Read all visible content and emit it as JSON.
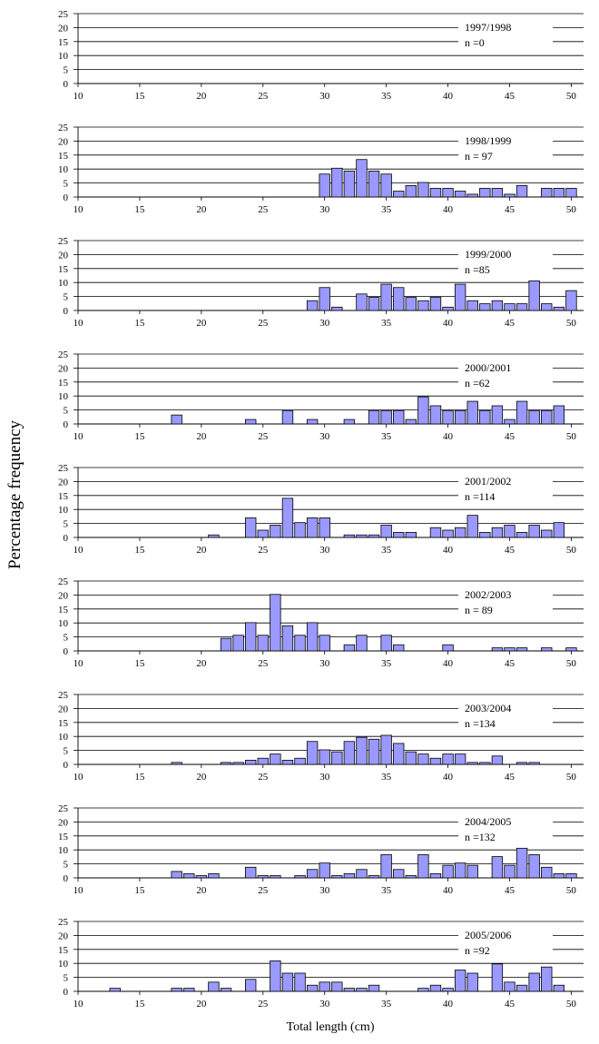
{
  "figure": {
    "ylabel": "Percentage frequency",
    "xlabel": "Total length (cm)"
  },
  "colors": {
    "bar_fill": "#9999ff",
    "bar_stroke": "#000000",
    "grid": "#000000"
  },
  "chart_data": [
    {
      "type": "bar",
      "title": "1997/1998",
      "n_label": "n =0",
      "xlim": [
        10,
        51
      ],
      "ylim": [
        0,
        25
      ],
      "xticks": [
        10,
        15,
        20,
        25,
        30,
        35,
        40,
        45,
        50
      ],
      "yticks": [
        0,
        5,
        10,
        15,
        20,
        25
      ],
      "x": [],
      "values": []
    },
    {
      "type": "bar",
      "title": "1998/1999",
      "n_label": "n = 97",
      "xlim": [
        10,
        51
      ],
      "ylim": [
        0,
        25
      ],
      "xticks": [
        10,
        15,
        20,
        25,
        30,
        35,
        40,
        45,
        50
      ],
      "yticks": [
        0,
        5,
        10,
        15,
        20,
        25
      ],
      "x": [
        30,
        31,
        32,
        33,
        34,
        35,
        36,
        37,
        38,
        39,
        40,
        41,
        42,
        43,
        44,
        45,
        46,
        48,
        49,
        50
      ],
      "values": [
        8.2,
        10.3,
        9.3,
        13.4,
        9.3,
        8.2,
        2.1,
        4.1,
        5.2,
        3.1,
        3.1,
        2.1,
        1.0,
        3.1,
        3.1,
        1.0,
        4.1,
        3.1,
        3.1,
        3.1
      ]
    },
    {
      "type": "bar",
      "title": "1999/2000",
      "n_label": "n =85",
      "xlim": [
        10,
        51
      ],
      "ylim": [
        0,
        25
      ],
      "xticks": [
        10,
        15,
        20,
        25,
        30,
        35,
        40,
        45,
        50
      ],
      "yticks": [
        0,
        5,
        10,
        15,
        20,
        25
      ],
      "x": [
        29,
        30,
        31,
        33,
        34,
        35,
        36,
        37,
        38,
        39,
        40,
        41,
        42,
        43,
        44,
        45,
        46,
        47,
        48,
        49,
        50
      ],
      "values": [
        3.5,
        8.2,
        1.2,
        5.9,
        4.7,
        9.4,
        8.2,
        4.7,
        3.5,
        4.7,
        1.2,
        9.4,
        3.5,
        2.4,
        3.5,
        2.4,
        2.4,
        10.6,
        2.4,
        1.2,
        7.1
      ]
    },
    {
      "type": "bar",
      "title": "2000/2001",
      "n_label": "n =62",
      "xlim": [
        10,
        51
      ],
      "ylim": [
        0,
        25
      ],
      "xticks": [
        10,
        15,
        20,
        25,
        30,
        35,
        40,
        45,
        50
      ],
      "yticks": [
        0,
        5,
        10,
        15,
        20,
        25
      ],
      "x": [
        18,
        24,
        27,
        29,
        32,
        34,
        35,
        36,
        37,
        38,
        39,
        40,
        41,
        42,
        43,
        44,
        45,
        46,
        47,
        48,
        49
      ],
      "values": [
        3.2,
        1.6,
        4.8,
        1.6,
        1.6,
        4.8,
        4.8,
        4.8,
        1.6,
        9.7,
        6.5,
        4.8,
        4.8,
        8.1,
        4.8,
        6.5,
        1.6,
        8.1,
        4.8,
        4.8,
        6.5
      ]
    },
    {
      "type": "bar",
      "title": "2001/2002",
      "n_label": "n =114",
      "xlim": [
        10,
        51
      ],
      "ylim": [
        0,
        25
      ],
      "xticks": [
        10,
        15,
        20,
        25,
        30,
        35,
        40,
        45,
        50
      ],
      "yticks": [
        0,
        5,
        10,
        15,
        20,
        25
      ],
      "x": [
        21,
        24,
        25,
        26,
        27,
        28,
        29,
        30,
        32,
        33,
        34,
        35,
        36,
        37,
        39,
        40,
        41,
        42,
        43,
        44,
        45,
        46,
        47,
        48,
        49
      ],
      "values": [
        0.9,
        7.0,
        2.6,
        4.4,
        14.0,
        5.3,
        7.0,
        7.0,
        0.9,
        0.9,
        0.9,
        4.4,
        1.8,
        1.8,
        3.5,
        2.6,
        3.5,
        7.9,
        1.8,
        3.5,
        4.4,
        1.8,
        4.4,
        2.6,
        5.3
      ]
    },
    {
      "type": "bar",
      "title": "2002/2003",
      "n_label": "n = 89",
      "xlim": [
        10,
        51
      ],
      "ylim": [
        0,
        25
      ],
      "xticks": [
        10,
        15,
        20,
        25,
        30,
        35,
        40,
        45,
        50
      ],
      "yticks": [
        0,
        5,
        10,
        15,
        20,
        25
      ],
      "x": [
        22,
        23,
        24,
        25,
        26,
        27,
        28,
        29,
        30,
        32,
        33,
        35,
        36,
        40,
        44,
        45,
        46,
        48,
        50
      ],
      "values": [
        4.5,
        5.6,
        10.1,
        5.6,
        20.2,
        9.0,
        5.6,
        10.1,
        5.6,
        2.2,
        5.6,
        5.6,
        2.2,
        2.2,
        1.1,
        1.1,
        1.1,
        1.1,
        1.1
      ]
    },
    {
      "type": "bar",
      "title": "2003/2004",
      "n_label": "n =134",
      "xlim": [
        10,
        51
      ],
      "ylim": [
        0,
        25
      ],
      "xticks": [
        10,
        15,
        20,
        25,
        30,
        35,
        40,
        45,
        50
      ],
      "yticks": [
        0,
        5,
        10,
        15,
        20,
        25
      ],
      "x": [
        18,
        22,
        23,
        24,
        25,
        26,
        27,
        28,
        29,
        30,
        31,
        32,
        33,
        34,
        35,
        36,
        37,
        38,
        39,
        40,
        41,
        42,
        43,
        44,
        46,
        47
      ],
      "values": [
        0.7,
        0.7,
        0.7,
        1.5,
        2.2,
        3.7,
        1.5,
        2.2,
        8.2,
        5.2,
        4.5,
        8.2,
        9.7,
        9.0,
        10.4,
        7.5,
        4.5,
        3.7,
        2.2,
        3.7,
        3.7,
        0.7,
        0.7,
        3.0,
        0.7,
        0.7
      ]
    },
    {
      "type": "bar",
      "title": "2004/2005",
      "n_label": "n =132",
      "xlim": [
        10,
        51
      ],
      "ylim": [
        0,
        25
      ],
      "xticks": [
        10,
        15,
        20,
        25,
        30,
        35,
        40,
        45,
        50
      ],
      "yticks": [
        0,
        5,
        10,
        15,
        20,
        25
      ],
      "x": [
        18,
        19,
        20,
        21,
        24,
        25,
        26,
        28,
        29,
        30,
        31,
        32,
        33,
        34,
        35,
        36,
        37,
        38,
        39,
        40,
        41,
        42,
        44,
        45,
        46,
        47,
        48,
        49,
        50
      ],
      "values": [
        2.3,
        1.5,
        0.8,
        1.5,
        3.8,
        0.8,
        0.8,
        0.8,
        3.0,
        5.3,
        0.8,
        1.5,
        3.0,
        0.8,
        8.3,
        3.0,
        0.8,
        8.3,
        1.5,
        4.5,
        5.3,
        4.5,
        7.6,
        4.5,
        10.6,
        8.3,
        3.8,
        1.5,
        1.5
      ]
    },
    {
      "type": "bar",
      "title": "2005/2006",
      "n_label": "n =92",
      "xlim": [
        10,
        51
      ],
      "ylim": [
        0,
        25
      ],
      "xticks": [
        10,
        15,
        20,
        25,
        30,
        35,
        40,
        45,
        50
      ],
      "yticks": [
        0,
        5,
        10,
        15,
        20,
        25
      ],
      "x": [
        13,
        18,
        19,
        21,
        22,
        24,
        26,
        27,
        28,
        29,
        30,
        31,
        32,
        33,
        34,
        38,
        39,
        40,
        41,
        42,
        44,
        45,
        46,
        47,
        48,
        49
      ],
      "values": [
        1.1,
        1.1,
        1.1,
        3.3,
        1.1,
        4.3,
        10.9,
        6.5,
        6.5,
        2.2,
        3.3,
        3.3,
        1.1,
        1.1,
        2.2,
        1.1,
        2.2,
        1.1,
        7.6,
        6.5,
        9.8,
        3.3,
        2.2,
        6.5,
        8.7,
        2.2
      ]
    }
  ]
}
